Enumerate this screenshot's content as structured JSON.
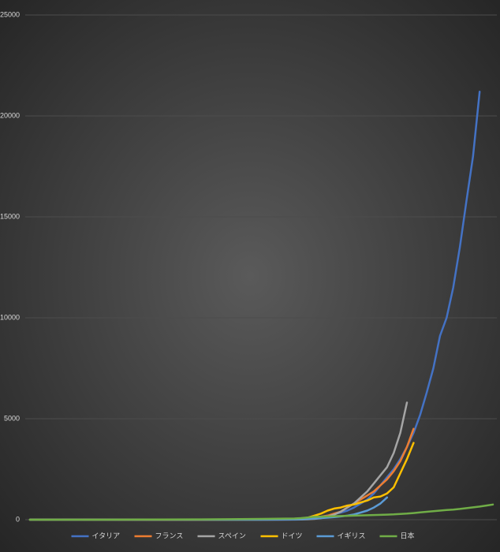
{
  "chart_data": {
    "type": "line",
    "x": [
      0,
      5,
      10,
      15,
      20,
      25,
      30,
      35,
      40,
      41,
      42,
      43,
      44,
      45,
      46,
      47,
      48,
      49,
      50,
      51,
      52,
      53,
      54,
      55,
      56,
      57,
      58,
      59,
      60,
      61,
      62,
      63,
      64,
      65,
      66,
      67,
      68,
      69,
      70
    ],
    "xlim": [
      0,
      70
    ],
    "ylim": [
      0,
      25000
    ],
    "yticks": [
      0,
      5000,
      10000,
      15000,
      20000,
      25000
    ],
    "grid": true,
    "legend": "bottom",
    "series": [
      {
        "name": "イタリア",
        "color": "#4472c4",
        "values": [
          0,
          0,
          0,
          0,
          0,
          2,
          5,
          15,
          30,
          50,
          80,
          110,
          150,
          200,
          280,
          350,
          450,
          600,
          800,
          1000,
          1300,
          1700,
          2100,
          2500,
          3000,
          3600,
          4300,
          5200,
          6300,
          7500,
          9100,
          10000,
          11500,
          13500,
          15800,
          18000,
          21200,
          null,
          null
        ]
      },
      {
        "name": "フランス",
        "color": "#ed7d31",
        "values": [
          0,
          0,
          0,
          0,
          0,
          0,
          2,
          5,
          10,
          20,
          50,
          100,
          150,
          200,
          300,
          400,
          600,
          800,
          1000,
          1200,
          1400,
          1700,
          2000,
          2400,
          2900,
          3600,
          4500,
          null,
          null,
          null,
          null,
          null,
          null,
          null,
          null,
          null,
          null,
          null,
          null
        ]
      },
      {
        "name": "スペイン",
        "color": "#a5a5a5",
        "values": [
          0,
          0,
          0,
          0,
          0,
          0,
          0,
          1,
          5,
          10,
          20,
          40,
          80,
          150,
          250,
          400,
          600,
          800,
          1100,
          1400,
          1800,
          2200,
          2600,
          3300,
          4300,
          5800,
          null,
          null,
          null,
          null,
          null,
          null,
          null,
          null,
          null,
          null,
          null,
          null,
          null
        ]
      },
      {
        "name": "ドイツ",
        "color": "#ffc000",
        "values": [
          0,
          0,
          0,
          0,
          0,
          1,
          2,
          10,
          20,
          50,
          100,
          200,
          300,
          450,
          550,
          600,
          700,
          750,
          850,
          950,
          1100,
          1150,
          1300,
          1600,
          2300,
          3000,
          3800,
          null,
          null,
          null,
          null,
          null,
          null,
          null,
          null,
          null,
          null,
          null,
          null
        ]
      },
      {
        "name": "イギリス",
        "color": "#5b9bd5",
        "values": [
          0,
          0,
          0,
          0,
          0,
          0,
          0,
          0,
          10,
          20,
          40,
          60,
          80,
          100,
          130,
          160,
          200,
          260,
          350,
          450,
          600,
          800,
          1100,
          null,
          null,
          null,
          null,
          null,
          null,
          null,
          null,
          null,
          null,
          null,
          null,
          null,
          null,
          null,
          null
        ]
      },
      {
        "name": "日本",
        "color": "#70ad47",
        "values": [
          0,
          0,
          1,
          3,
          8,
          15,
          25,
          40,
          60,
          80,
          110,
          140,
          150,
          160,
          170,
          180,
          190,
          200,
          210,
          220,
          230,
          240,
          250,
          260,
          280,
          300,
          330,
          360,
          390,
          420,
          450,
          480,
          500,
          530,
          570,
          610,
          650,
          700,
          750
        ]
      }
    ]
  }
}
